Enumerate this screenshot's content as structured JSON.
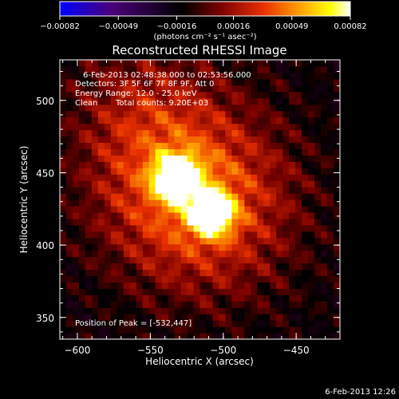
{
  "chart_data": {
    "type": "heatmap",
    "title": "Reconstructed RHESSI Image",
    "xlabel": "Heliocentric X (arcsec)",
    "ylabel": "Heliocentric Y (arcsec)",
    "xlim": [
      -612,
      -420
    ],
    "ylim": [
      335,
      528
    ],
    "x_ticks": [
      -600,
      -550,
      -500,
      -450
    ],
    "x_tick_labels": [
      "−600",
      "−550",
      "−500",
      "−450"
    ],
    "y_ticks": [
      350,
      400,
      450,
      500
    ],
    "y_tick_labels": [
      "350",
      "400",
      "450",
      "500"
    ],
    "colorbar": {
      "ticks": [
        -0.00082,
        -0.00049,
        -0.00016,
        0.00016,
        0.00049,
        0.00082
      ],
      "tick_labels": [
        "−0.00082",
        "−0.00049",
        "−0.00016",
        "0.00016",
        "0.00049",
        "0.00082"
      ],
      "unit_label": "(photons cm⁻² s⁻¹ asec⁻²)",
      "colors": [
        "#0000ff",
        "#4b0078",
        "#000000",
        "#780000",
        "#e83000",
        "#ff9a00",
        "#ffff00",
        "#ffffff"
      ]
    },
    "sources": [
      {
        "x": -532,
        "y": 447,
        "relative_intensity": 1.0
      },
      {
        "x": -508,
        "y": 422,
        "relative_intensity": 0.92
      }
    ],
    "annotations": {
      "time_range": "6-Feb-2013 02:48:38.000 to 02:53:56.000",
      "detectors": "Detectors: 3F 5F 6F 7F 8F 9F, Att 0",
      "energy": "Energy Range: 12.0 - 25.0 keV",
      "clean": "Clean",
      "counts": "Total counts: 9.20E+03",
      "peak": "Position of Peak = [-532,447]"
    }
  },
  "footer": {
    "timestamp": "6-Feb-2013 12:26"
  }
}
